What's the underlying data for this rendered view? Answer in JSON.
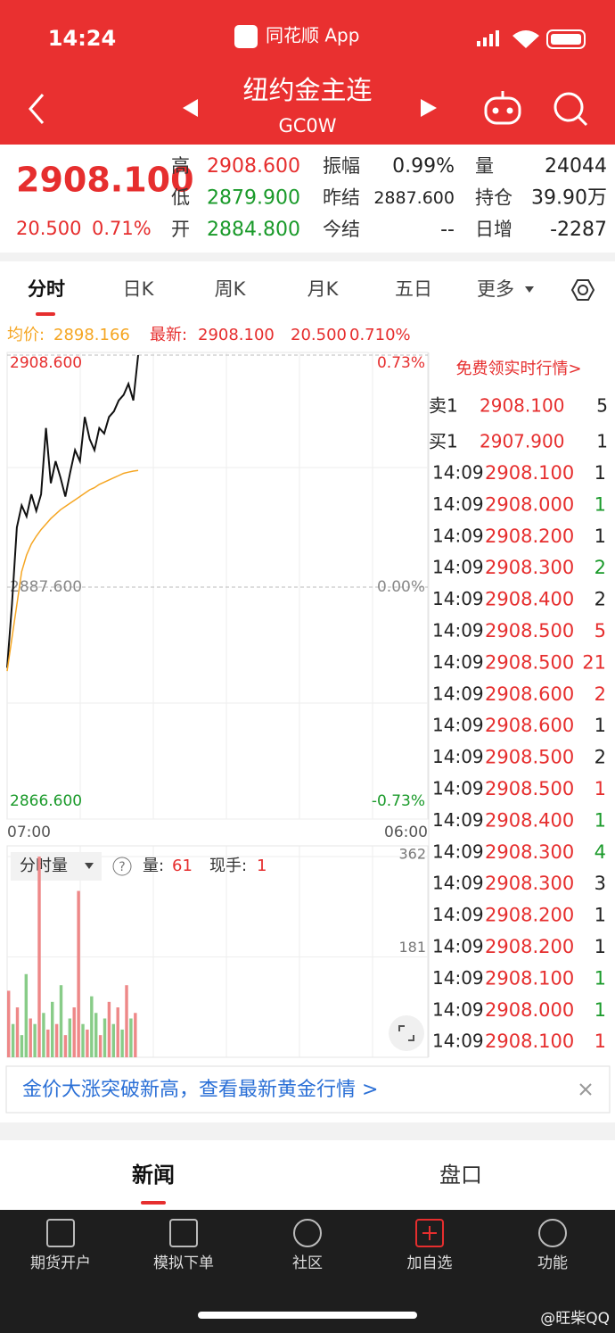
{
  "status_bar": {
    "time": "14:24",
    "app": "同花顺 App"
  },
  "header": {
    "title": "纽约金主连",
    "code": "GC0W"
  },
  "quote": {
    "price": "2908.100",
    "change": "20.500",
    "change_pct": "0.71%",
    "columns": [
      [
        {
          "label": "高",
          "value": "2908.600",
          "color": "#e62e2e"
        },
        {
          "label": "低",
          "value": "2879.900",
          "color": "#1a9a2a"
        },
        {
          "label": "开",
          "value": "2884.800",
          "color": "#1a9a2a"
        }
      ],
      [
        {
          "label": "振幅",
          "value": "0.99%",
          "color": "#222222"
        },
        {
          "label": "昨结",
          "value": "2887.600",
          "color": "#222222"
        },
        {
          "label": "今结",
          "value": "--",
          "color": "#222222"
        }
      ],
      [
        {
          "label": "量",
          "value": "24044",
          "color": "#222222"
        },
        {
          "label": "持仓",
          "value": "39.90万",
          "color": "#222222"
        },
        {
          "label": "日增",
          "value": "-2287",
          "color": "#222222"
        }
      ]
    ]
  },
  "tabs": {
    "items": [
      "分时",
      "日K",
      "周K",
      "月K",
      "五日",
      "更多"
    ],
    "active": 0
  },
  "info": {
    "avg_label": "均价:",
    "avg": "2898.166",
    "latest_label": "最新:",
    "latest": "2908.100",
    "change": "20.500",
    "change_pct": "0.710%"
  },
  "chart": {
    "type": "line",
    "ylim": [
      2866.6,
      2908.6
    ],
    "yticks": [
      {
        "value": 2908.6,
        "label": "2908.600"
      },
      {
        "value": 2887.6,
        "label": "2887.600"
      },
      {
        "value": 2866.6,
        "label": "2866.600"
      }
    ],
    "right_labels": [
      "0.73%",
      "0.00%",
      "-0.73%"
    ],
    "x_labels": [
      "07:00",
      "06:00"
    ],
    "series": [
      {
        "color": "#111111",
        "values": [
          2880.3,
          2886,
          2893,
          2895,
          2894,
          2896,
          2894.5,
          2896,
          2902,
          2897,
          2899,
          2897.5,
          2895.8,
          2898,
          2900,
          2899,
          2903,
          2901,
          2900,
          2902,
          2901.5,
          2903,
          2903.5,
          2904.5,
          2905,
          2906,
          2904.5,
          2908.6
        ]
      },
      {
        "color": "#f5a623",
        "values": [
          2880,
          2883,
          2886,
          2889,
          2890.5,
          2891.5,
          2892.2,
          2892.8,
          2893.3,
          2893.8,
          2894.2,
          2894.6,
          2894.9,
          2895.2,
          2895.5,
          2895.8,
          2896.1,
          2896.4,
          2896.6,
          2896.9,
          2897.1,
          2897.3,
          2897.5,
          2897.7,
          2897.9,
          2898,
          2898.1,
          2898.166
        ]
      }
    ]
  },
  "volume": {
    "type": "bar",
    "label": "分时量",
    "ylim": [
      0,
      362
    ],
    "yticks": [
      362,
      181
    ],
    "qty_label": "量:",
    "qty": "61",
    "hand_label": "现手:",
    "hand": "1",
    "values": [
      120,
      60,
      90,
      40,
      150,
      70,
      60,
      362,
      80,
      50,
      100,
      60,
      130,
      40,
      70,
      90,
      300,
      60,
      50,
      110,
      80,
      40,
      70,
      100,
      60,
      90,
      50,
      130,
      70,
      80
    ],
    "colors": [
      "#e88",
      "#8c8",
      "#e88",
      "#8c8",
      "#8c8",
      "#e88",
      "#8c8",
      "#e88",
      "#8c8",
      "#e88",
      "#8c8",
      "#e88",
      "#8c8",
      "#e88",
      "#8c8",
      "#e88",
      "#e88",
      "#8c8",
      "#e88",
      "#8c8",
      "#8c8",
      "#e88",
      "#8c8",
      "#e88",
      "#8c8",
      "#e88",
      "#8c8",
      "#e88",
      "#8c8",
      "#e88"
    ]
  },
  "order_book": {
    "promo": "免费领实时行情>",
    "levels": [
      {
        "label": "卖1",
        "price": "2908.100",
        "qty": "5"
      },
      {
        "label": "买1",
        "price": "2907.900",
        "qty": "1"
      }
    ],
    "trades": [
      {
        "time": "14:09",
        "price": "2908.100",
        "qty": "1",
        "color": "#222222"
      },
      {
        "time": "14:09",
        "price": "2908.000",
        "qty": "1",
        "color": "#1a9a2a"
      },
      {
        "time": "14:09",
        "price": "2908.200",
        "qty": "1",
        "color": "#222222"
      },
      {
        "time": "14:09",
        "price": "2908.300",
        "qty": "2",
        "color": "#1a9a2a"
      },
      {
        "time": "14:09",
        "price": "2908.400",
        "qty": "2",
        "color": "#222222"
      },
      {
        "time": "14:09",
        "price": "2908.500",
        "qty": "5",
        "color": "#e62e2e"
      },
      {
        "time": "14:09",
        "price": "2908.500",
        "qty": "21",
        "color": "#e62e2e"
      },
      {
        "time": "14:09",
        "price": "2908.600",
        "qty": "2",
        "color": "#e62e2e"
      },
      {
        "time": "14:09",
        "price": "2908.600",
        "qty": "1",
        "color": "#222222"
      },
      {
        "time": "14:09",
        "price": "2908.500",
        "qty": "2",
        "color": "#222222"
      },
      {
        "time": "14:09",
        "price": "2908.500",
        "qty": "1",
        "color": "#e62e2e"
      },
      {
        "time": "14:09",
        "price": "2908.400",
        "qty": "1",
        "color": "#1a9a2a"
      },
      {
        "time": "14:09",
        "price": "2908.300",
        "qty": "4",
        "color": "#1a9a2a"
      },
      {
        "time": "14:09",
        "price": "2908.300",
        "qty": "3",
        "color": "#222222"
      },
      {
        "time": "14:09",
        "price": "2908.200",
        "qty": "1",
        "color": "#222222"
      },
      {
        "time": "14:09",
        "price": "2908.200",
        "qty": "1",
        "color": "#222222"
      },
      {
        "time": "14:09",
        "price": "2908.100",
        "qty": "1",
        "color": "#1a9a2a"
      },
      {
        "time": "14:09",
        "price": "2908.000",
        "qty": "1",
        "color": "#1a9a2a"
      },
      {
        "time": "14:09",
        "price": "2908.100",
        "qty": "1",
        "color": "#e62e2e"
      }
    ]
  },
  "banner": {
    "text": "金价大涨突破新高，查看最新黄金行情 >"
  },
  "bottom_tabs": {
    "items": [
      "新闻",
      "盘口"
    ],
    "active": 0
  },
  "nav": {
    "items": [
      "期货开户",
      "模拟下单",
      "社区",
      "加自选",
      "功能"
    ]
  },
  "watermark": "@旺柴QQ"
}
